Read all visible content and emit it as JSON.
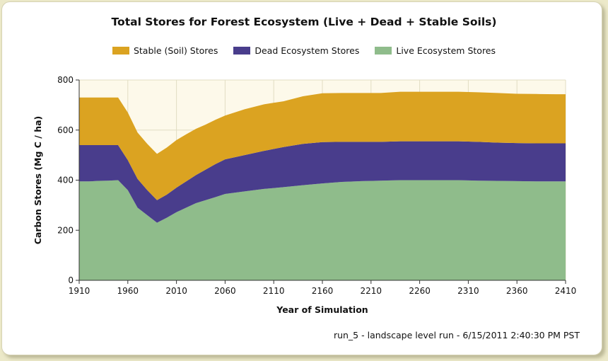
{
  "chart_data": {
    "type": "area",
    "stacked": true,
    "title": "Total Stores for Forest Ecosystem (Live + Dead + Stable Soils)",
    "xlabel": "Year of Simulation",
    "ylabel": "Carbon Stores (Mg C / ha)",
    "xlim": [
      1910,
      2410
    ],
    "ylim": [
      0,
      800
    ],
    "xticks": [
      1910,
      1960,
      2010,
      2060,
      2110,
      2160,
      2210,
      2260,
      2310,
      2360,
      2410
    ],
    "yticks": [
      0,
      200,
      400,
      600,
      800
    ],
    "grid": true,
    "legend_position": "top",
    "x": [
      1910,
      1920,
      1930,
      1940,
      1950,
      1960,
      1970,
      1980,
      1990,
      2000,
      2010,
      2020,
      2030,
      2040,
      2050,
      2060,
      2080,
      2100,
      2120,
      2140,
      2160,
      2180,
      2200,
      2220,
      2240,
      2260,
      2280,
      2300,
      2320,
      2340,
      2360,
      2380,
      2400,
      2410
    ],
    "series": [
      {
        "name": "Live Ecosystem Stores",
        "color": "#8fbc8b",
        "values": [
          395,
          395,
          397,
          398,
          400,
          360,
          290,
          260,
          230,
          250,
          272,
          290,
          308,
          320,
          332,
          345,
          355,
          365,
          372,
          380,
          387,
          393,
          396,
          398,
          400,
          400,
          400,
          400,
          398,
          397,
          396,
          395,
          395,
          395
        ]
      },
      {
        "name": "Dead Ecosystem Stores",
        "color": "#493d8c",
        "values": [
          145,
          145,
          143,
          142,
          140,
          120,
          115,
          100,
          90,
          92,
          98,
          105,
          112,
          122,
          132,
          138,
          145,
          152,
          160,
          165,
          165,
          160,
          157,
          155,
          155,
          155,
          155,
          155,
          155,
          153,
          152,
          152,
          152,
          152
        ]
      },
      {
        "name": "Stable (Soil) Stores",
        "color": "#dba321",
        "values": [
          190,
          190,
          190,
          190,
          190,
          190,
          185,
          185,
          185,
          188,
          190,
          188,
          185,
          180,
          177,
          175,
          183,
          186,
          183,
          190,
          195,
          195,
          195,
          195,
          198,
          198,
          198,
          198,
          198,
          198,
          197,
          197,
          196,
          196
        ]
      }
    ]
  },
  "legend": {
    "items": [
      {
        "label": "Stable (Soil) Stores",
        "color": "#dba321"
      },
      {
        "label": "Dead Ecosystem Stores",
        "color": "#493d8c"
      },
      {
        "label": "Live Ecosystem Stores",
        "color": "#8fbc8b"
      }
    ]
  },
  "footer": "run_5 - landscape level run - 6/15/2011 2:40:30 PM PST",
  "colors": {
    "plot_background": "#fdf9ea",
    "grid": "#e2ddc3",
    "axis": "#333333"
  }
}
